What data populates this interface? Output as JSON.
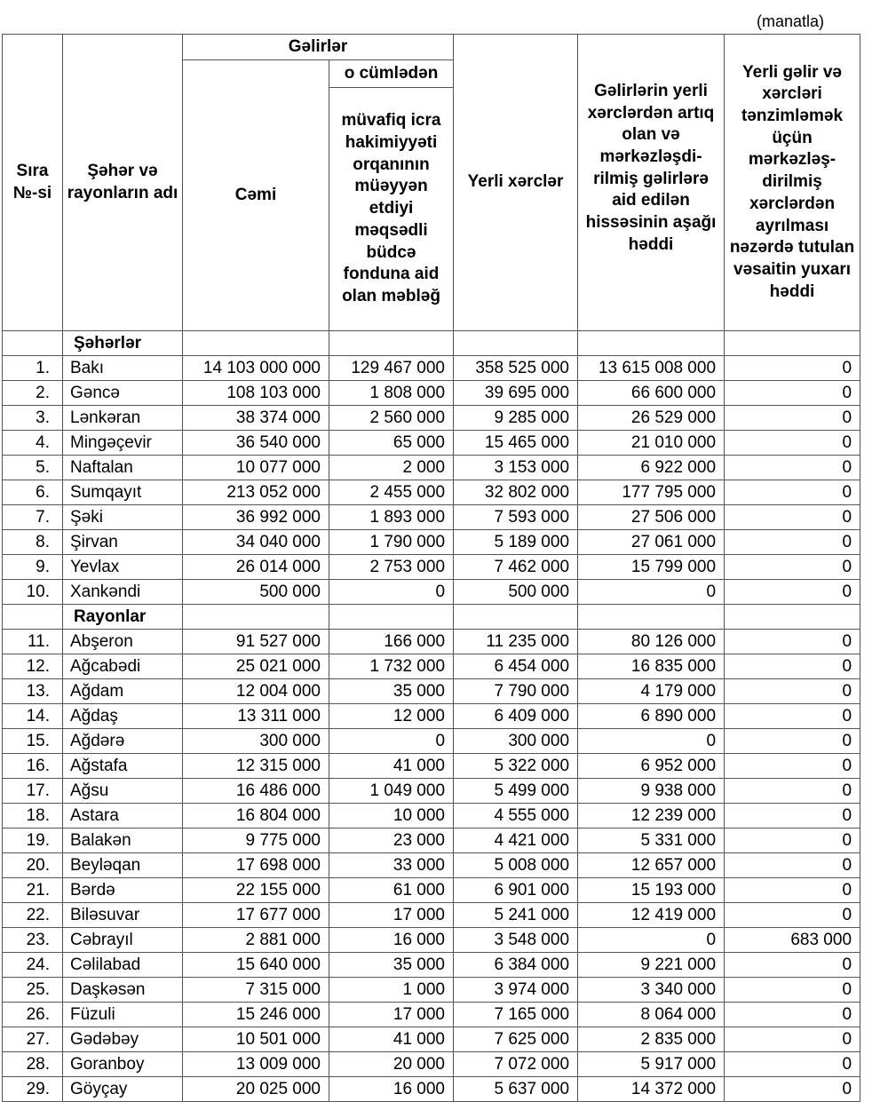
{
  "unit_note": "(manatla)",
  "headers": {
    "no": "Sıra №-si",
    "name": "Şəhər və rayonların adı",
    "revenues": "Gəlirlər",
    "total": "Cəmi",
    "including": "o cümlədən",
    "targeted_fund": "müvafiq icra hakimiyyəti orqanının müəyyən etdiyi məqsədli büdcə fonduna aid olan məbləğ",
    "local_expenses": "Yerli xərclər",
    "lower_limit": "Gəlirlərin yerli xərclərdən artıq olan və mərkəzləşdi-rilmiş gəlirlərə aid edilən hissəsinin aşağı həddi",
    "upper_limit": "Yerli gəlir və xərcləri tənzimləmək üçün mərkəzləş-dirilmiş xərclərdən ayrılması nəzərdə tutulan vəsaitin yuxarı həddi"
  },
  "sections": [
    {
      "title": "Şəhərlər",
      "rows": [
        [
          "1.",
          "Bakı",
          "14 103 000 000",
          "129 467 000",
          "358 525 000",
          "13 615 008 000",
          "0"
        ],
        [
          "2.",
          "Gəncə",
          "108 103 000",
          "1 808 000",
          "39 695 000",
          "66 600 000",
          "0"
        ],
        [
          "3.",
          "Lənkəran",
          "38 374 000",
          "2 560 000",
          "9 285 000",
          "26 529 000",
          "0"
        ],
        [
          "4.",
          "Mingəçevir",
          "36 540 000",
          "65 000",
          "15 465 000",
          "21 010 000",
          "0"
        ],
        [
          "5.",
          "Naftalan",
          "10 077 000",
          "2 000",
          "3 153 000",
          "6 922 000",
          "0"
        ],
        [
          "6.",
          "Sumqayıt",
          "213 052 000",
          "2 455 000",
          "32 802 000",
          "177 795 000",
          "0"
        ],
        [
          "7.",
          "Şəki",
          "36 992 000",
          "1 893 000",
          "7 593 000",
          "27 506 000",
          "0"
        ],
        [
          "8.",
          "Şirvan",
          "34 040 000",
          "1 790 000",
          "5 189 000",
          "27 061 000",
          "0"
        ],
        [
          "9.",
          "Yevlax",
          "26 014 000",
          "2 753 000",
          "7 462 000",
          "15 799 000",
          "0"
        ],
        [
          "10.",
          "Xankəndi",
          "500 000",
          "0",
          "500 000",
          "0",
          "0"
        ]
      ]
    },
    {
      "title": "Rayonlar",
      "rows": [
        [
          "11.",
          "Abşeron",
          "91 527 000",
          "166 000",
          "11 235 000",
          "80 126 000",
          "0"
        ],
        [
          "12.",
          "Ağcabədi",
          "25 021 000",
          "1 732 000",
          "6 454 000",
          "16 835 000",
          "0"
        ],
        [
          "13.",
          "Ağdam",
          "12 004 000",
          "35 000",
          "7 790 000",
          "4 179 000",
          "0"
        ],
        [
          "14.",
          "Ağdaş",
          "13 311 000",
          "12 000",
          "6 409 000",
          "6 890 000",
          "0"
        ],
        [
          "15.",
          "Ağdərə",
          "300 000",
          "0",
          "300 000",
          "0",
          "0"
        ],
        [
          "16.",
          "Ağstafa",
          "12 315 000",
          "41 000",
          "5 322 000",
          "6 952 000",
          "0"
        ],
        [
          "17.",
          "Ağsu",
          "16 486 000",
          "1 049 000",
          "5 499 000",
          "9 938 000",
          "0"
        ],
        [
          "18.",
          "Astara",
          "16 804 000",
          "10 000",
          "4 555 000",
          "12 239 000",
          "0"
        ],
        [
          "19.",
          "Balakən",
          "9 775 000",
          "23 000",
          "4 421 000",
          "5 331 000",
          "0"
        ],
        [
          "20.",
          "Beyləqan",
          "17 698 000",
          "33 000",
          "5 008 000",
          "12 657 000",
          "0"
        ],
        [
          "21.",
          "Bərdə",
          "22 155 000",
          "61 000",
          "6 901 000",
          "15 193 000",
          "0"
        ],
        [
          "22.",
          "Biləsuvar",
          "17 677 000",
          "17 000",
          "5 241 000",
          "12 419 000",
          "0"
        ],
        [
          "23.",
          "Cəbrayıl",
          "2 881 000",
          "16 000",
          "3 548 000",
          "0",
          "683 000"
        ],
        [
          "24.",
          "Cəlilabad",
          "15 640 000",
          "35 000",
          "6 384 000",
          "9 221 000",
          "0"
        ],
        [
          "25.",
          "Daşkəsən",
          "7 315 000",
          "1 000",
          "3 974 000",
          "3 340 000",
          "0"
        ],
        [
          "26.",
          "Füzuli",
          "15 246 000",
          "17 000",
          "7 165 000",
          "8 064 000",
          "0"
        ],
        [
          "27.",
          "Gədəbəy",
          "10 501 000",
          "41 000",
          "7 625 000",
          "2 835 000",
          "0"
        ],
        [
          "28.",
          "Goranboy",
          "13 009 000",
          "20 000",
          "7 072 000",
          "5 917 000",
          "0"
        ],
        [
          "29.",
          "Göyçay",
          "20 025 000",
          "16 000",
          "5 637 000",
          "14 372 000",
          "0"
        ]
      ]
    }
  ]
}
